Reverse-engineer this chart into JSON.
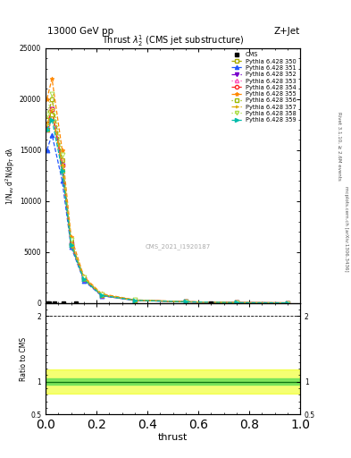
{
  "title_top": "13000 GeV pp",
  "title_right": "Z+Jet",
  "main_title": "Thrust $\\lambda_2^1$ (CMS jet substructure)",
  "xlabel": "thrust",
  "ylabel_ratio": "Ratio to CMS",
  "right_label1": "Rivet 3.1.10, ≥ 2.6M events",
  "right_label2": "mcplots.cern.ch [arXiv:1306.3436]",
  "watermark": "CMS_2021_I1920187",
  "pythia_x": [
    0.005,
    0.025,
    0.065,
    0.1,
    0.15,
    0.22,
    0.35,
    0.55,
    0.75,
    0.95
  ],
  "pythia_y_350": [
    18000,
    20000,
    14000,
    6000,
    2500,
    800,
    280,
    120,
    30,
    10
  ],
  "pythia_y_351": [
    15000,
    16500,
    12000,
    5500,
    2200,
    700,
    250,
    110,
    28,
    8
  ],
  "pythia_y_352": [
    17000,
    19000,
    13500,
    5800,
    2350,
    760,
    270,
    115,
    29,
    9
  ],
  "pythia_y_353": [
    17000,
    18500,
    13000,
    5700,
    2300,
    750,
    265,
    113,
    28,
    9
  ],
  "pythia_y_354": [
    17500,
    19000,
    13500,
    5800,
    2400,
    780,
    275,
    116,
    29,
    9
  ],
  "pythia_y_355": [
    20000,
    22000,
    15000,
    6500,
    2600,
    900,
    310,
    130,
    33,
    11
  ],
  "pythia_y_356": [
    17000,
    18500,
    13000,
    5700,
    2300,
    750,
    265,
    113,
    28,
    9
  ],
  "pythia_y_357": [
    17500,
    19000,
    13500,
    5800,
    2400,
    780,
    275,
    116,
    29,
    9
  ],
  "pythia_y_358": [
    18500,
    20500,
    14500,
    6200,
    2500,
    820,
    285,
    120,
    30,
    10
  ],
  "pythia_y_359": [
    17000,
    18000,
    13000,
    5700,
    2300,
    750,
    265,
    113,
    28,
    9
  ],
  "series": [
    {
      "label": "Pythia 6.428 350",
      "color": "#aaaa00",
      "marker": "s",
      "linestyle": "--",
      "filled": false
    },
    {
      "label": "Pythia 6.428 351",
      "color": "#2255ff",
      "marker": "^",
      "linestyle": "--",
      "filled": true
    },
    {
      "label": "Pythia 6.428 352",
      "color": "#7700cc",
      "marker": "v",
      "linestyle": "-.",
      "filled": true
    },
    {
      "label": "Pythia 6.428 353",
      "color": "#ff55bb",
      "marker": "^",
      "linestyle": ":",
      "filled": false
    },
    {
      "label": "Pythia 6.428 354",
      "color": "#ff2222",
      "marker": "o",
      "linestyle": "--",
      "filled": false
    },
    {
      "label": "Pythia 6.428 355",
      "color": "#ff8800",
      "marker": "*",
      "linestyle": "--",
      "filled": true
    },
    {
      "label": "Pythia 6.428 356",
      "color": "#99bb00",
      "marker": "s",
      "linestyle": ":",
      "filled": false
    },
    {
      "label": "Pythia 6.428 357",
      "color": "#ddaa00",
      "marker": "4",
      "linestyle": "-.",
      "filled": false
    },
    {
      "label": "Pythia 6.428 358",
      "color": "#aadd44",
      "marker": "v",
      "linestyle": ":",
      "filled": false
    },
    {
      "label": "Pythia 6.428 359",
      "color": "#00bbaa",
      "marker": ">",
      "linestyle": "--",
      "filled": true
    }
  ],
  "ylim_main": [
    0,
    25000
  ],
  "yticks_main": [
    0,
    5000,
    10000,
    15000,
    20000,
    25000
  ],
  "ytick_labels_main": [
    "0",
    "5000",
    "10000",
    "15000",
    "20000",
    "25000"
  ],
  "ylim_ratio": [
    0.5,
    2.2
  ],
  "ratio_yticks": [
    0.5,
    1.0,
    2.0
  ],
  "ratio_ytick_labels": [
    "0.5",
    "1",
    "2"
  ],
  "ratio_band_yellow": [
    0.82,
    1.18
  ],
  "ratio_band_green": [
    0.95,
    1.05
  ],
  "bg_color": "#ffffff"
}
